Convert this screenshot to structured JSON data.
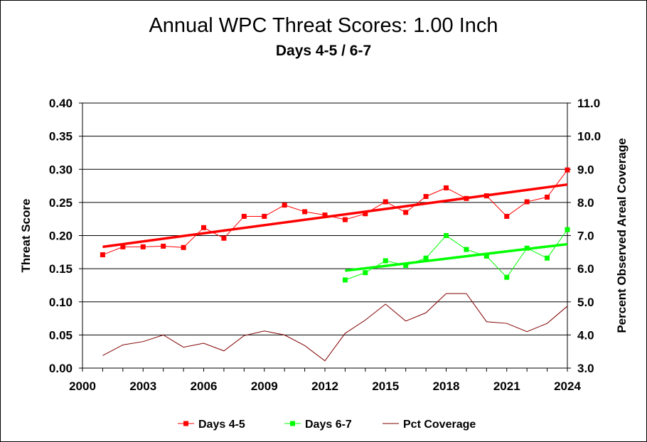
{
  "chart_data": {
    "type": "line",
    "title": "Annual WPC Threat Scores:  1.00 Inch",
    "subtitle": "Days 4-5 / 6-7",
    "ylabel": "Threat Score",
    "y2label": "Percent Observed Areal Coverage",
    "ylim": [
      0.0,
      0.4
    ],
    "y2lim": [
      3.0,
      11.0
    ],
    "xlim": [
      2000,
      2024
    ],
    "x_ticks": [
      "2000",
      "2003",
      "2006",
      "2009",
      "2012",
      "2015",
      "2018",
      "2021",
      "2024"
    ],
    "y_ticks": [
      "0.00",
      "0.05",
      "0.10",
      "0.15",
      "0.20",
      "0.25",
      "0.30",
      "0.35",
      "0.40"
    ],
    "y2_ticks": [
      "3.0",
      "4.0",
      "5.0",
      "6.0",
      "7.0",
      "8.0",
      "9.0",
      "10.0",
      "11.0"
    ],
    "grid": "horizontal",
    "legend_position": "bottom",
    "series": [
      {
        "name": "Days 4-5",
        "axis": "left",
        "color": "#ff0000",
        "marker": "square",
        "x": [
          2001,
          2002,
          2003,
          2004,
          2005,
          2006,
          2007,
          2008,
          2009,
          2010,
          2011,
          2012,
          2013,
          2014,
          2015,
          2016,
          2017,
          2018,
          2019,
          2020,
          2021,
          2022,
          2023,
          2024
        ],
        "values": [
          0.171,
          0.183,
          0.183,
          0.184,
          0.182,
          0.212,
          0.196,
          0.229,
          0.229,
          0.246,
          0.236,
          0.231,
          0.224,
          0.233,
          0.251,
          0.235,
          0.259,
          0.272,
          0.256,
          0.26,
          0.229,
          0.251,
          0.258,
          0.299
        ],
        "trend": [
          0.183,
          0.277
        ]
      },
      {
        "name": "Days 6-7",
        "axis": "left",
        "color": "#00ff00",
        "marker": "square",
        "x": [
          2013,
          2014,
          2015,
          2016,
          2017,
          2018,
          2019,
          2020,
          2021,
          2022,
          2023,
          2024
        ],
        "values": [
          0.133,
          0.144,
          0.162,
          0.155,
          0.166,
          0.2,
          0.179,
          0.169,
          0.137,
          0.181,
          0.166,
          0.209
        ],
        "trend": [
          0.147,
          0.187
        ]
      },
      {
        "name": "Pct Coverage",
        "axis": "right",
        "color": "#800000",
        "marker": "none",
        "x": [
          2001,
          2002,
          2003,
          2004,
          2005,
          2006,
          2007,
          2008,
          2009,
          2010,
          2011,
          2012,
          2013,
          2014,
          2015,
          2016,
          2017,
          2018,
          2019,
          2020,
          2021,
          2022,
          2023,
          2024
        ],
        "values": [
          3.38,
          3.7,
          3.8,
          4.0,
          3.63,
          3.75,
          3.52,
          3.98,
          4.12,
          4.0,
          3.68,
          3.22,
          4.05,
          4.45,
          4.93,
          4.42,
          4.67,
          5.25,
          5.25,
          4.4,
          4.35,
          4.1,
          4.35,
          4.87
        ]
      }
    ]
  }
}
